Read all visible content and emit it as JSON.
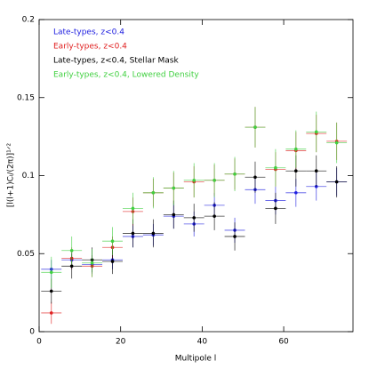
{
  "chart_data": {
    "type": "scatter",
    "xlabel": "Multipole l",
    "ylabel": "[l(l+1)Cₗ/(2π)]¹ᐟ²",
    "xlim": [
      0,
      77
    ],
    "ylim": [
      0,
      0.2
    ],
    "xticks": [
      0,
      20,
      40,
      60
    ],
    "yticks": [
      0,
      0.05,
      0.1,
      0.15,
      0.2
    ],
    "legend": "upper left",
    "x": [
      3,
      8,
      13,
      18,
      23,
      28,
      33,
      38,
      43,
      48,
      53,
      58,
      63,
      68,
      73
    ],
    "xerr": 2.5,
    "series": [
      {
        "name": "Late-types, z<0.4",
        "color": "#2020e0",
        "values": [
          0.04,
          0.046,
          0.043,
          0.046,
          0.061,
          0.062,
          0.074,
          0.069,
          0.081,
          0.065,
          0.091,
          0.084,
          0.089,
          0.093,
          0.096
        ],
        "errors": [
          0.006,
          0.006,
          0.006,
          0.006,
          0.007,
          0.007,
          0.008,
          0.008,
          0.008,
          0.008,
          0.009,
          0.009,
          0.009,
          0.009,
          0.009
        ]
      },
      {
        "name": "Early-types, z<0.4",
        "color": "#e02020",
        "values": [
          0.012,
          0.047,
          0.042,
          0.054,
          0.077,
          0.089,
          0.092,
          0.096,
          0.097,
          0.101,
          0.131,
          0.104,
          0.116,
          0.127,
          0.122
        ],
        "errors": [
          0.007,
          0.007,
          0.007,
          0.007,
          0.009,
          0.009,
          0.01,
          0.01,
          0.01,
          0.01,
          0.013,
          0.011,
          0.012,
          0.012,
          0.012
        ]
      },
      {
        "name": "Late-types, z<0.4, Stellar Mask",
        "color": "#000000",
        "values": [
          0.026,
          0.042,
          0.046,
          0.045,
          0.063,
          0.063,
          0.075,
          0.073,
          0.074,
          0.061,
          0.099,
          0.079,
          0.103,
          0.103,
          0.096
        ],
        "errors": [
          0.008,
          0.008,
          0.008,
          0.008,
          0.009,
          0.009,
          0.009,
          0.009,
          0.009,
          0.009,
          0.01,
          0.01,
          0.01,
          0.01,
          0.01
        ]
      },
      {
        "name": "Early-types, z<0.4, Lowered Density",
        "color": "#40d040",
        "values": [
          0.038,
          0.052,
          0.044,
          0.058,
          0.079,
          0.089,
          0.092,
          0.097,
          0.097,
          0.101,
          0.131,
          0.105,
          0.117,
          0.128,
          0.121
        ],
        "errors": [
          0.01,
          0.009,
          0.009,
          0.009,
          0.01,
          0.01,
          0.011,
          0.011,
          0.011,
          0.011,
          0.013,
          0.012,
          0.012,
          0.013,
          0.013
        ]
      }
    ]
  }
}
